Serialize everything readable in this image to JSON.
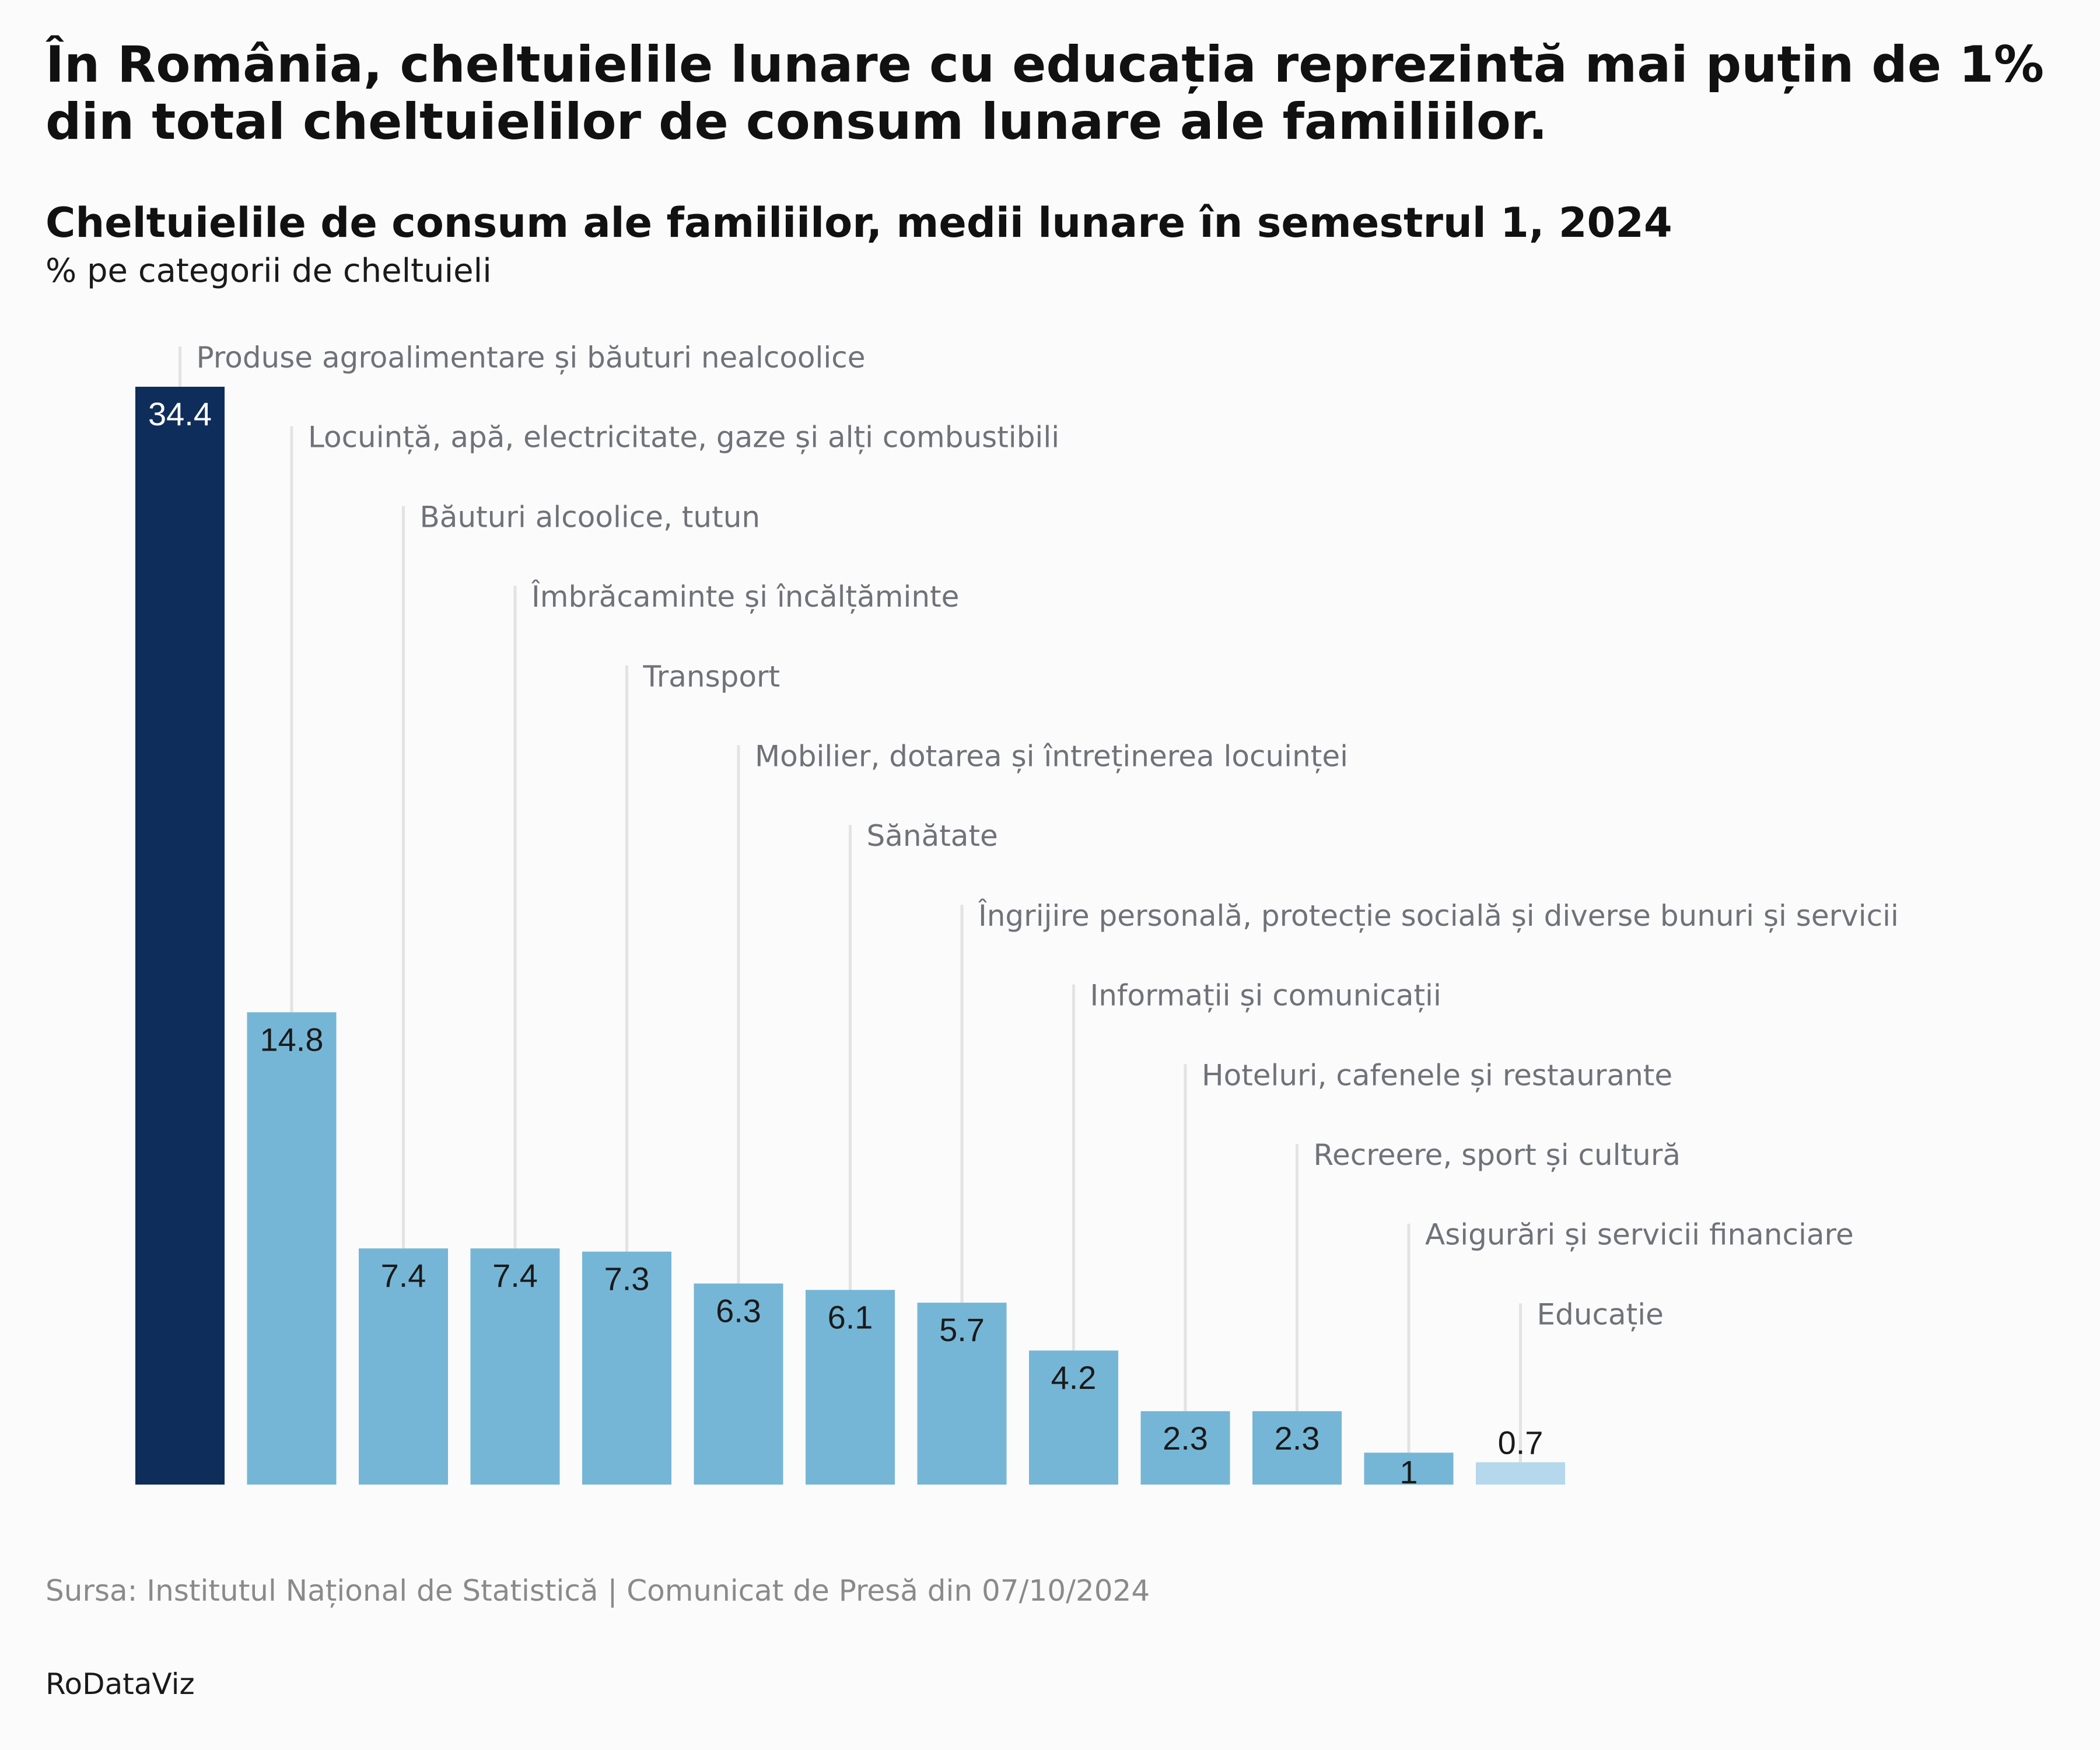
{
  "header": {
    "title": "În România, cheltuielile lunare cu educația reprezintă mai puțin de 1% din total cheltuielilor de consum lunare ale familiilor.",
    "subtitle": "Cheltuielile de consum ale familiilor, medii lunare în semestrul 1, 2024",
    "unit": "% pe categorii de cheltuieli"
  },
  "footer": {
    "source": "Sursa: Institutul Național de Statistică | Comunicat de Presă din 07/10/2024",
    "brand": "RoDataViz"
  },
  "colors": {
    "highlight": "#0f2d5a",
    "default": "#75b6d6",
    "low": "#b6d8ec",
    "leader": "#e3e3e3",
    "category_text": "#6f7278",
    "value_text_dark": "#1a1a1a",
    "value_text_light": "#ffffff"
  },
  "chart_data": {
    "type": "bar",
    "title": "Cheltuielile de consum ale familiilor, medii lunare în semestrul 1, 2024",
    "ylabel": "% pe categorii de cheltuieli",
    "ylim": [
      0,
      34.4
    ],
    "grid": false,
    "legend": "none",
    "categories": [
      "Produse agroalimentare și băuturi nealcoolice",
      "Locuință, apă, electricitate, gaze și alți combustibili",
      "Băuturi alcoolice, tutun",
      "Îmbrăcaminte și încălțăminte",
      "Transport",
      "Mobilier, dotarea și întreținerea locuinței",
      "Sănătate",
      "Îngrijire personală, protecție socială și diverse bunuri și servicii",
      "Informații și comunicații",
      "Hoteluri, cafenele și restaurante",
      "Recreere, sport și cultură",
      "Asigurări și servicii financiare",
      "Educație"
    ],
    "values": [
      34.4,
      14.8,
      7.4,
      7.4,
      7.3,
      6.3,
      6.1,
      5.7,
      4.2,
      2.3,
      2.3,
      1,
      0.7
    ],
    "value_labels": [
      "34.4",
      "14.8",
      "7.4",
      "7.4",
      "7.3",
      "6.3",
      "6.1",
      "5.7",
      "4.2",
      "2.3",
      "2.3",
      "1",
      "0.7"
    ],
    "bar_color_keys": [
      "highlight",
      "default",
      "default",
      "default",
      "default",
      "default",
      "default",
      "default",
      "default",
      "default",
      "default",
      "default",
      "low"
    ]
  }
}
